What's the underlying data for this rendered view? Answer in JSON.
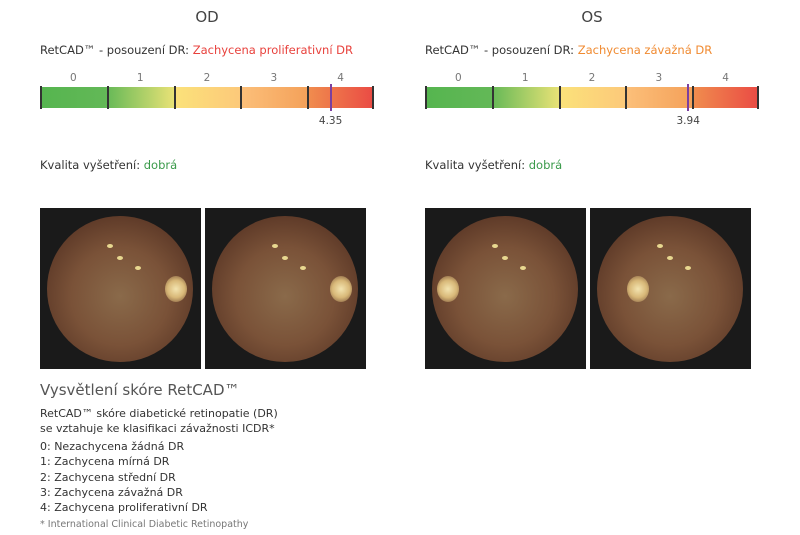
{
  "eyes": [
    {
      "title": "OD",
      "assess_label": "RetCAD™ - posouzení DR: ",
      "assess_value": "Zachycena proliferativní DR",
      "assess_color": "#e8413c",
      "score": 4.35,
      "score_text": "4.35",
      "quality_label": "Kvalita vyšetření: ",
      "quality_value": "dobrá"
    },
    {
      "title": "OS",
      "assess_label": "RetCAD™ - posouzení DR: ",
      "assess_value": "Zachycena závažná DR",
      "assess_color": "#f08a30",
      "score": 3.94,
      "score_text": "3.94",
      "quality_label": "Kvalita vyšetření: ",
      "quality_value": "dobrá"
    }
  ],
  "scale_labels": [
    "0",
    "1",
    "2",
    "3",
    "4"
  ],
  "quality_color": "#3a9a4a",
  "explanation": {
    "title": "Vysvětlení skóre RetCAD™",
    "intro1": "RetCAD™ skóre diabetické retinopatie (DR)",
    "intro2": "se vztahuje ke klasifikaci závažnosti ICDR*",
    "items": [
      "0: Nezachycena žádná DR",
      "1: Zachycena mírná DR",
      "2: Zachycena střední DR",
      "3: Zachycena závažná DR",
      "4: Zachycena proliferativní DR"
    ],
    "footnote": "* International Clinical Diabetic Retinopathy"
  }
}
